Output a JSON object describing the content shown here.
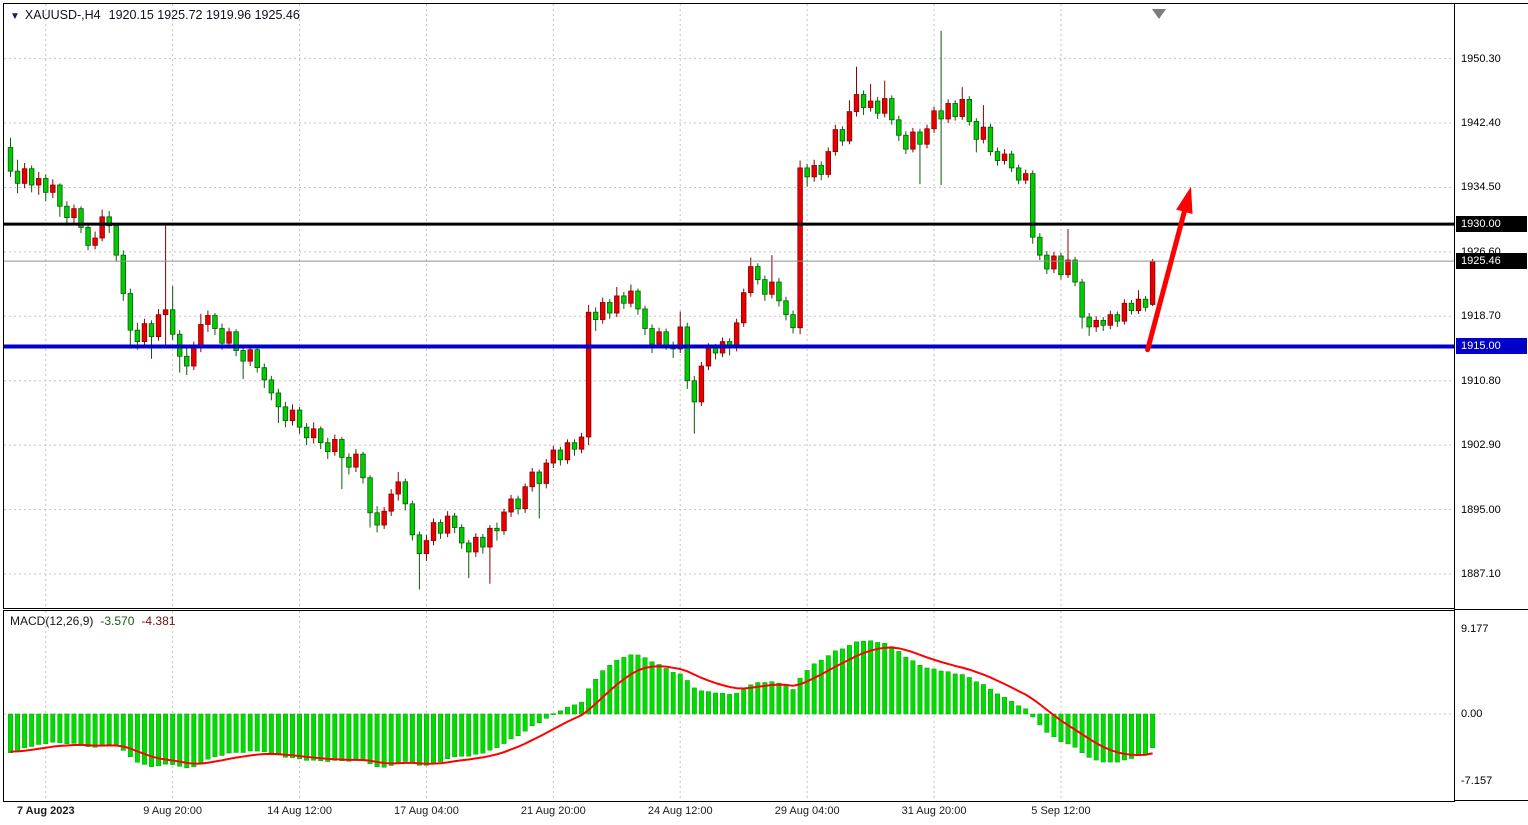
{
  "header": {
    "icon": "▼",
    "symbol_tf": "XAUUSD-,H4",
    "ohlc": "1920.15 1925.72 1919.96 1925.46"
  },
  "macd": {
    "name": "MACD(12,26,9)",
    "value_main": "-3.570",
    "value_signal": "-4.381",
    "axis_labels": [
      "9.177",
      "0.00",
      "-7.157"
    ]
  },
  "levels": {
    "resistance": {
      "label": "1930.00",
      "price": 1930.0,
      "color": "#000000",
      "width": 3
    },
    "bid": {
      "label": "1925.46",
      "price": 1925.46,
      "color": "#000000",
      "line_color": "#8f8f8f",
      "width": 1
    },
    "support": {
      "label": "1915.00",
      "price": 1915.0,
      "color": "#0000c8",
      "width": 4
    }
  },
  "axes": {
    "price_labels": [
      "1950.30",
      "1942.40",
      "1934.50",
      "1926.60",
      "1918.70",
      "1910.80",
      "1902.90",
      "1895.00",
      "1887.10"
    ],
    "time_labels": [
      "7 Aug 2023",
      "9 Aug 20:00",
      "14 Aug 12:00",
      "17 Aug 04:00",
      "21 Aug 20:00",
      "24 Aug 12:00",
      "29 Aug 04:00",
      "31 Aug 20:00",
      "5 Sep 12:00"
    ]
  },
  "colors": {
    "bull_body": "#e60000",
    "bull_edge": "#8b0000",
    "bear_body": "#00cd00",
    "bear_edge": "#0b5c0b",
    "grid": "#c4c4c4",
    "hist": "#00dc00",
    "hist_edge": "#00a400",
    "signal": "#ff0000",
    "arrow": "#ff0000",
    "bid_line": "#8f8f8f"
  },
  "chart_data": {
    "type": "candlestick",
    "title": "XAUUSD- H4",
    "y_ticks": [
      1950.3,
      1942.4,
      1934.5,
      1926.6,
      1918.7,
      1910.8,
      1902.9,
      1895.0,
      1887.1
    ],
    "x_tick_indices": [
      5,
      23,
      41,
      59,
      77,
      95,
      113,
      131,
      149
    ],
    "x_tick_labels": [
      "7 Aug 2023",
      "9 Aug 20:00",
      "14 Aug 12:00",
      "17 Aug 04:00",
      "21 Aug 20:00",
      "24 Aug 12:00",
      "29 Aug 04:00",
      "31 Aug 20:00",
      "5 Sep 12:00"
    ],
    "levels": [
      1930.0,
      1915.0
    ],
    "current_price": 1925.46,
    "indicator": {
      "type": "MACD",
      "params": [
        12,
        26,
        9
      ],
      "current_main": -3.57,
      "current_signal": -4.381,
      "y_max": 9.177,
      "y_min": -7.157
    },
    "annotation_arrow": {
      "color": "#ff0000",
      "from_price": 1914.6,
      "to_price": 1934.6
    },
    "candles": [
      [
        1939.4,
        1940.6,
        1935.8,
        1936.5
      ],
      [
        1936.5,
        1937.9,
        1933.8,
        1935.0
      ],
      [
        1935.0,
        1937.5,
        1934.4,
        1936.8
      ],
      [
        1936.8,
        1937.2,
        1933.9,
        1934.8
      ],
      [
        1934.8,
        1936.4,
        1933.6,
        1935.6
      ],
      [
        1935.6,
        1936.1,
        1932.8,
        1933.9
      ],
      [
        1933.9,
        1935.5,
        1933.2,
        1934.8
      ],
      [
        1934.8,
        1935.0,
        1930.9,
        1932.2
      ],
      [
        1932.2,
        1932.8,
        1929.8,
        1930.8
      ],
      [
        1930.8,
        1932.4,
        1930.1,
        1931.9
      ],
      [
        1931.9,
        1932.2,
        1928.9,
        1929.6
      ],
      [
        1929.6,
        1930.2,
        1926.8,
        1927.4
      ],
      [
        1927.4,
        1929.1,
        1926.9,
        1928.3
      ],
      [
        1928.3,
        1931.8,
        1927.9,
        1930.9
      ],
      [
        1930.9,
        1931.6,
        1928.9,
        1929.8
      ],
      [
        1929.8,
        1930.1,
        1925.4,
        1926.2
      ],
      [
        1926.2,
        1926.8,
        1920.6,
        1921.5
      ],
      [
        1921.5,
        1922.1,
        1914.8,
        1917.0
      ],
      [
        1917.0,
        1917.9,
        1914.6,
        1915.6
      ],
      [
        1915.6,
        1918.4,
        1915.1,
        1917.8
      ],
      [
        1917.8,
        1918.2,
        1913.5,
        1916.2
      ],
      [
        1916.2,
        1919.6,
        1915.7,
        1918.9
      ],
      [
        1918.9,
        1929.8,
        1914.9,
        1919.5
      ],
      [
        1919.5,
        1922.4,
        1915.8,
        1916.5
      ],
      [
        1916.5,
        1917.0,
        1911.8,
        1913.8
      ],
      [
        1913.8,
        1914.9,
        1911.5,
        1912.6
      ],
      [
        1912.6,
        1915.6,
        1912.1,
        1914.9
      ],
      [
        1914.9,
        1919.0,
        1914.3,
        1917.7
      ],
      [
        1917.7,
        1919.4,
        1916.8,
        1918.8
      ],
      [
        1918.8,
        1919.1,
        1916.4,
        1917.2
      ],
      [
        1917.2,
        1917.8,
        1914.6,
        1915.4
      ],
      [
        1915.4,
        1917.3,
        1914.9,
        1916.8
      ],
      [
        1916.8,
        1917.1,
        1913.8,
        1914.5
      ],
      [
        1914.5,
        1915.0,
        1911.0,
        1913.2
      ],
      [
        1913.2,
        1915.2,
        1912.6,
        1914.6
      ],
      [
        1914.6,
        1914.9,
        1911.8,
        1912.4
      ],
      [
        1912.4,
        1912.9,
        1909.9,
        1910.9
      ],
      [
        1910.9,
        1911.4,
        1908.4,
        1909.3
      ],
      [
        1909.3,
        1909.8,
        1905.6,
        1907.6
      ],
      [
        1907.6,
        1908.2,
        1905.1,
        1905.9
      ],
      [
        1905.9,
        1907.9,
        1905.3,
        1907.2
      ],
      [
        1907.2,
        1907.6,
        1904.3,
        1905.1
      ],
      [
        1905.1,
        1905.6,
        1902.9,
        1903.8
      ],
      [
        1903.8,
        1905.7,
        1903.1,
        1904.9
      ],
      [
        1904.9,
        1905.2,
        1902.4,
        1903.2
      ],
      [
        1903.2,
        1903.8,
        1901.2,
        1902.1
      ],
      [
        1902.1,
        1904.2,
        1901.6,
        1903.6
      ],
      [
        1903.6,
        1903.9,
        1897.5,
        1901.4
      ],
      [
        1901.4,
        1901.9,
        1899.3,
        1900.2
      ],
      [
        1900.2,
        1902.4,
        1899.6,
        1901.8
      ],
      [
        1901.8,
        1902.1,
        1898.2,
        1898.9
      ],
      [
        1898.9,
        1899.2,
        1892.8,
        1894.6
      ],
      [
        1894.6,
        1895.4,
        1892.2,
        1893.1
      ],
      [
        1893.1,
        1895.3,
        1892.6,
        1894.8
      ],
      [
        1894.8,
        1897.5,
        1894.2,
        1896.9
      ],
      [
        1896.9,
        1899.6,
        1896.1,
        1898.4
      ],
      [
        1898.4,
        1898.8,
        1894.9,
        1895.7
      ],
      [
        1895.7,
        1896.1,
        1891.2,
        1891.9
      ],
      [
        1891.9,
        1892.3,
        1885.2,
        1889.6
      ],
      [
        1889.6,
        1891.9,
        1888.7,
        1891.2
      ],
      [
        1891.2,
        1893.9,
        1890.6,
        1893.4
      ],
      [
        1893.4,
        1893.8,
        1891.4,
        1892.1
      ],
      [
        1892.1,
        1894.8,
        1891.6,
        1894.2
      ],
      [
        1894.2,
        1894.6,
        1892.1,
        1892.8
      ],
      [
        1892.8,
        1893.2,
        1890.2,
        1890.9
      ],
      [
        1890.9,
        1891.3,
        1886.6,
        1889.8
      ],
      [
        1889.8,
        1892.1,
        1889.2,
        1891.6
      ],
      [
        1891.6,
        1892.0,
        1889.6,
        1890.4
      ],
      [
        1890.4,
        1893.1,
        1885.9,
        1892.7
      ],
      [
        1892.7,
        1893.4,
        1891.2,
        1892.4
      ],
      [
        1892.4,
        1895.1,
        1891.9,
        1894.7
      ],
      [
        1894.7,
        1896.8,
        1894.1,
        1896.3
      ],
      [
        1896.3,
        1896.7,
        1894.4,
        1895.1
      ],
      [
        1895.1,
        1898.2,
        1894.6,
        1897.8
      ],
      [
        1897.8,
        1900.1,
        1897.2,
        1899.6
      ],
      [
        1899.6,
        1899.9,
        1893.9,
        1898.2
      ],
      [
        1898.2,
        1901.2,
        1897.6,
        1900.7
      ],
      [
        1900.7,
        1902.8,
        1900.1,
        1902.3
      ],
      [
        1902.3,
        1902.7,
        1900.4,
        1901.1
      ],
      [
        1901.1,
        1903.6,
        1900.6,
        1903.2
      ],
      [
        1903.2,
        1903.6,
        1901.6,
        1902.4
      ],
      [
        1902.4,
        1904.4,
        1901.9,
        1903.9
      ],
      [
        1903.9,
        1920.1,
        1902.9,
        1919.2
      ],
      [
        1919.2,
        1919.8,
        1916.9,
        1918.3
      ],
      [
        1918.3,
        1921.0,
        1917.8,
        1920.4
      ],
      [
        1920.4,
        1920.8,
        1918.4,
        1919.1
      ],
      [
        1919.1,
        1922.3,
        1918.6,
        1921.2
      ],
      [
        1921.2,
        1921.7,
        1919.6,
        1920.3
      ],
      [
        1920.3,
        1922.6,
        1919.8,
        1921.8
      ],
      [
        1921.8,
        1922.1,
        1918.9,
        1919.6
      ],
      [
        1919.6,
        1920.0,
        1916.4,
        1917.2
      ],
      [
        1917.2,
        1917.7,
        1914.2,
        1915.3
      ],
      [
        1915.3,
        1917.3,
        1914.8,
        1916.8
      ],
      [
        1916.8,
        1917.2,
        1914.6,
        1915.1
      ],
      [
        1915.1,
        1915.6,
        1913.6,
        1914.7
      ],
      [
        1914.7,
        1919.3,
        1914.2,
        1917.4
      ],
      [
        1917.4,
        1917.9,
        1909.8,
        1910.8
      ],
      [
        1910.8,
        1911.4,
        1904.3,
        1908.2
      ],
      [
        1908.2,
        1913.1,
        1907.7,
        1912.6
      ],
      [
        1912.6,
        1915.4,
        1912.1,
        1914.9
      ],
      [
        1914.9,
        1915.3,
        1913.4,
        1914.2
      ],
      [
        1914.2,
        1916.1,
        1913.7,
        1915.6
      ],
      [
        1915.6,
        1916.0,
        1913.9,
        1914.8
      ],
      [
        1914.8,
        1918.4,
        1914.4,
        1917.9
      ],
      [
        1917.9,
        1922.1,
        1917.4,
        1921.6
      ],
      [
        1921.6,
        1925.9,
        1921.1,
        1924.8
      ],
      [
        1924.8,
        1925.2,
        1922.6,
        1923.2
      ],
      [
        1923.2,
        1923.7,
        1920.6,
        1921.4
      ],
      [
        1921.4,
        1926.2,
        1920.9,
        1922.9
      ],
      [
        1922.9,
        1923.4,
        1919.9,
        1920.6
      ],
      [
        1920.6,
        1921.1,
        1918.2,
        1918.9
      ],
      [
        1918.9,
        1919.4,
        1916.6,
        1917.3
      ],
      [
        1917.3,
        1937.8,
        1916.5,
        1936.9
      ],
      [
        1936.9,
        1937.4,
        1934.6,
        1935.8
      ],
      [
        1935.8,
        1937.9,
        1935.2,
        1937.2
      ],
      [
        1937.2,
        1937.7,
        1935.4,
        1936.1
      ],
      [
        1936.1,
        1939.4,
        1935.7,
        1938.9
      ],
      [
        1938.9,
        1942.2,
        1938.4,
        1941.6
      ],
      [
        1941.6,
        1942.0,
        1939.6,
        1940.2
      ],
      [
        1940.2,
        1945.2,
        1939.8,
        1943.8
      ],
      [
        1943.8,
        1949.3,
        1943.2,
        1945.9
      ],
      [
        1945.9,
        1946.4,
        1943.4,
        1944.3
      ],
      [
        1944.3,
        1947.2,
        1943.8,
        1945.1
      ],
      [
        1945.1,
        1945.6,
        1942.9,
        1943.6
      ],
      [
        1943.6,
        1947.6,
        1943.1,
        1945.4
      ],
      [
        1945.4,
        1945.8,
        1942.2,
        1942.8
      ],
      [
        1942.8,
        1943.3,
        1940.2,
        1940.9
      ],
      [
        1940.9,
        1941.4,
        1938.6,
        1939.2
      ],
      [
        1939.2,
        1941.8,
        1938.8,
        1941.3
      ],
      [
        1941.3,
        1941.7,
        1934.9,
        1939.8
      ],
      [
        1939.8,
        1942.2,
        1939.3,
        1941.7
      ],
      [
        1941.7,
        1944.4,
        1941.2,
        1943.9
      ],
      [
        1943.9,
        1953.7,
        1934.8,
        1942.9
      ],
      [
        1942.9,
        1945.3,
        1942.4,
        1944.8
      ],
      [
        1944.8,
        1945.2,
        1942.7,
        1943.2
      ],
      [
        1943.2,
        1946.8,
        1942.8,
        1945.3
      ],
      [
        1945.3,
        1945.7,
        1942.1,
        1942.6
      ],
      [
        1942.6,
        1943.0,
        1938.8,
        1940.4
      ],
      [
        1940.4,
        1944.6,
        1939.9,
        1941.9
      ],
      [
        1941.9,
        1942.3,
        1938.4,
        1938.9
      ],
      [
        1938.9,
        1939.4,
        1937.2,
        1937.8
      ],
      [
        1937.8,
        1939.2,
        1937.3,
        1938.6
      ],
      [
        1938.6,
        1939.0,
        1936.4,
        1936.9
      ],
      [
        1936.9,
        1937.3,
        1934.9,
        1935.4
      ],
      [
        1935.4,
        1936.7,
        1934.9,
        1936.2
      ],
      [
        1936.2,
        1936.6,
        1927.6,
        1928.4
      ],
      [
        1928.4,
        1928.9,
        1925.6,
        1926.2
      ],
      [
        1926.2,
        1926.7,
        1923.9,
        1924.5
      ],
      [
        1924.5,
        1926.6,
        1924.0,
        1926.1
      ],
      [
        1926.1,
        1926.5,
        1923.2,
        1923.8
      ],
      [
        1923.8,
        1929.4,
        1923.4,
        1925.6
      ],
      [
        1925.6,
        1926.0,
        1922.4,
        1922.9
      ],
      [
        1922.9,
        1923.3,
        1917.2,
        1918.6
      ],
      [
        1918.6,
        1919.1,
        1916.3,
        1917.4
      ],
      [
        1917.4,
        1918.7,
        1916.8,
        1918.2
      ],
      [
        1918.2,
        1918.6,
        1916.9,
        1917.6
      ],
      [
        1917.6,
        1919.4,
        1917.1,
        1918.9
      ],
      [
        1918.9,
        1919.3,
        1917.4,
        1918.1
      ],
      [
        1918.1,
        1920.8,
        1917.7,
        1920.3
      ],
      [
        1920.3,
        1920.7,
        1918.9,
        1919.4
      ],
      [
        1919.4,
        1921.9,
        1919.0,
        1920.8
      ],
      [
        1920.8,
        1921.2,
        1919.3,
        1919.8
      ],
      [
        1920.15,
        1925.72,
        1919.96,
        1925.46
      ]
    ]
  }
}
